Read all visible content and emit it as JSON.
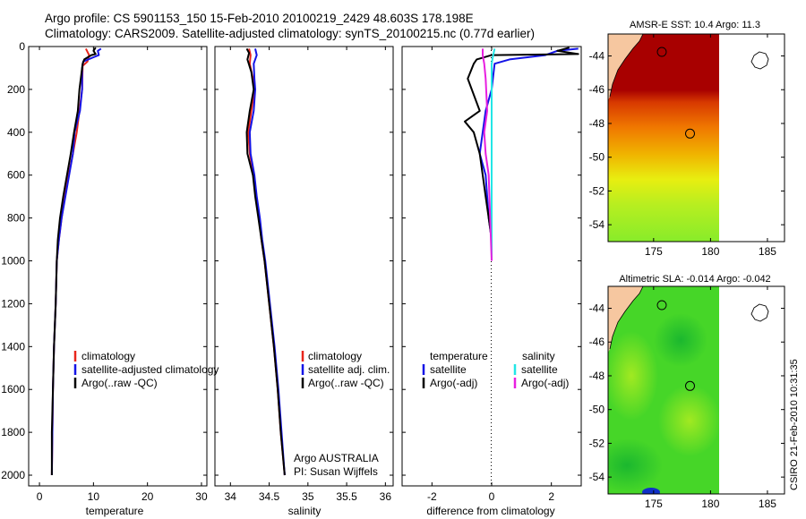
{
  "title": {
    "line1": "Argo profile: CS 5901153_150 15-Feb-2010 20100219_2429 48.603S 178.198E",
    "line2": "Climatology: CARS2009. Satellite-adjusted climatology: synTS_20100215.nc (0.77d earlier)"
  },
  "colors": {
    "climatology": "#e8251b",
    "satellite": "#1414e6",
    "argo": "#000000",
    "satellite_salinity": "#22e6e6",
    "argo_salinity": "#e81fe0",
    "land": "#f6c7a0"
  },
  "chart_data": [
    {
      "id": "temperature",
      "type": "line",
      "xlabel": "temperature",
      "ylabel": "",
      "xlim": [
        -2,
        31
      ],
      "ylim": [
        2050,
        0
      ],
      "xticks": [
        "0",
        "10",
        "20",
        "30"
      ],
      "xtick_values": [
        0,
        10,
        20,
        30
      ],
      "yticks": [
        "0",
        "200",
        "400",
        "600",
        "800",
        "1000",
        "1200",
        "1400",
        "1600",
        "1800",
        "2000"
      ],
      "ytick_values": [
        0,
        200,
        400,
        600,
        800,
        1000,
        1200,
        1400,
        1600,
        1800,
        2000
      ],
      "legend": [
        "climatology",
        "satellite-adjusted climatology",
        "Argo(..raw -QC)"
      ],
      "series": [
        {
          "name": "climatology",
          "color": "#e8251b",
          "points": [
            [
              8.6,
              10
            ],
            [
              9.2,
              40
            ],
            [
              8.9,
              70
            ],
            [
              8.0,
              90
            ],
            [
              7.9,
              200
            ],
            [
              7.4,
              300
            ],
            [
              6.9,
              400
            ],
            [
              6.2,
              500
            ],
            [
              5.4,
              600
            ],
            [
              4.7,
              700
            ],
            [
              4.1,
              800
            ],
            [
              3.6,
              900
            ],
            [
              3.2,
              1000
            ],
            [
              3.0,
              1200
            ],
            [
              2.7,
              1400
            ],
            [
              2.5,
              1600
            ],
            [
              2.4,
              1800
            ],
            [
              2.3,
              2000
            ]
          ]
        },
        {
          "name": "satellite-adjusted climatology",
          "color": "#1414e6",
          "points": [
            [
              11.4,
              10
            ],
            [
              10.8,
              20
            ],
            [
              11.0,
              40
            ],
            [
              10.0,
              50
            ],
            [
              8.1,
              70
            ],
            [
              7.9,
              100
            ],
            [
              7.9,
              200
            ],
            [
              7.5,
              300
            ],
            [
              7.0,
              350
            ],
            [
              6.5,
              400
            ],
            [
              6.2,
              500
            ],
            [
              5.5,
              600
            ],
            [
              4.8,
              700
            ],
            [
              4.1,
              800
            ],
            [
              3.6,
              900
            ],
            [
              3.2,
              1000
            ],
            [
              3.0,
              1200
            ],
            [
              2.7,
              1400
            ],
            [
              2.5,
              1600
            ],
            [
              2.4,
              1800
            ],
            [
              2.3,
              2000
            ]
          ]
        },
        {
          "name": "Argo(..raw -QC)",
          "color": "#000000",
          "points": [
            [
              10.4,
              5
            ],
            [
              10.0,
              20
            ],
            [
              10.4,
              35
            ],
            [
              9.6,
              40
            ],
            [
              8.3,
              60
            ],
            [
              8.0,
              80
            ],
            [
              7.8,
              120
            ],
            [
              7.4,
              200
            ],
            [
              7.1,
              300
            ],
            [
              6.4,
              400
            ],
            [
              5.8,
              500
            ],
            [
              5.1,
              600
            ],
            [
              4.4,
              700
            ],
            [
              3.8,
              800
            ],
            [
              3.4,
              900
            ],
            [
              3.2,
              1000
            ],
            [
              3.0,
              1200
            ],
            [
              2.7,
              1400
            ],
            [
              2.5,
              1600
            ],
            [
              2.3,
              1800
            ],
            [
              2.3,
              2000
            ]
          ]
        }
      ]
    },
    {
      "id": "salinity",
      "type": "line",
      "xlabel": "salinity",
      "ylabel": "",
      "xlim": [
        33.8,
        36.1
      ],
      "ylim": [
        2050,
        0
      ],
      "xticks": [
        "34",
        "34.5",
        "35",
        "35.5",
        "36"
      ],
      "xtick_values": [
        34,
        34.5,
        35,
        35.5,
        36
      ],
      "legend": [
        "climatology",
        "satellite adj. clim.",
        "Argo(..raw -QC)"
      ],
      "annotation": {
        "line1": "Argo AUSTRALIA",
        "line2": "PI: Susan Wijffels"
      },
      "series": [
        {
          "name": "climatology",
          "color": "#e8251b",
          "points": [
            [
              34.24,
              10
            ],
            [
              34.26,
              40
            ],
            [
              34.25,
              80
            ],
            [
              34.29,
              150
            ],
            [
              34.31,
              200
            ],
            [
              34.27,
              300
            ],
            [
              34.23,
              400
            ],
            [
              34.25,
              500
            ],
            [
              34.3,
              600
            ],
            [
              34.33,
              700
            ],
            [
              34.37,
              800
            ],
            [
              34.4,
              900
            ],
            [
              34.44,
              1000
            ],
            [
              34.5,
              1200
            ],
            [
              34.56,
              1400
            ],
            [
              34.61,
              1600
            ],
            [
              34.65,
              1800
            ],
            [
              34.7,
              2000
            ]
          ]
        },
        {
          "name": "satellite adj. clim.",
          "color": "#1414e6",
          "points": [
            [
              34.32,
              10
            ],
            [
              34.34,
              40
            ],
            [
              34.3,
              80
            ],
            [
              34.31,
              150
            ],
            [
              34.32,
              200
            ],
            [
              34.3,
              300
            ],
            [
              34.25,
              400
            ],
            [
              34.26,
              500
            ],
            [
              34.31,
              600
            ],
            [
              34.34,
              700
            ],
            [
              34.38,
              800
            ],
            [
              34.41,
              900
            ],
            [
              34.45,
              1000
            ],
            [
              34.51,
              1200
            ],
            [
              34.57,
              1400
            ],
            [
              34.62,
              1600
            ],
            [
              34.66,
              1800
            ],
            [
              34.7,
              2000
            ]
          ]
        },
        {
          "name": "Argo(..raw -QC)",
          "color": "#000000",
          "points": [
            [
              34.21,
              10
            ],
            [
              34.24,
              30
            ],
            [
              34.22,
              60
            ],
            [
              34.27,
              120
            ],
            [
              34.3,
              200
            ],
            [
              34.25,
              300
            ],
            [
              34.21,
              400
            ],
            [
              34.22,
              500
            ],
            [
              34.29,
              600
            ],
            [
              34.32,
              700
            ],
            [
              34.36,
              800
            ],
            [
              34.4,
              900
            ],
            [
              34.44,
              1000
            ],
            [
              34.5,
              1200
            ],
            [
              34.56,
              1400
            ],
            [
              34.61,
              1600
            ],
            [
              34.65,
              1800
            ],
            [
              34.7,
              2000
            ]
          ]
        }
      ]
    },
    {
      "id": "difference",
      "type": "line",
      "xlabel": "difference from climatology",
      "ylabel": "",
      "xlim": [
        -3,
        3
      ],
      "ylim": [
        2050,
        0
      ],
      "xticks": [
        "-2",
        "0",
        "2"
      ],
      "xtick_values": [
        -2,
        0,
        2
      ],
      "legend_headers": [
        "temperature",
        "salinity"
      ],
      "legend": [
        "satellite",
        "Argo(-adj)",
        "satellite",
        "Argo(-adj)"
      ],
      "series": [
        {
          "name": "satellite",
          "group": "temperature",
          "color": "#1414e6",
          "points": [
            [
              2.9,
              10
            ],
            [
              2.2,
              20
            ],
            [
              1.8,
              40
            ],
            [
              0.6,
              60
            ],
            [
              0.1,
              80
            ],
            [
              0.0,
              200
            ],
            [
              -0.2,
              300
            ],
            [
              -0.3,
              400
            ],
            [
              -0.4,
              500
            ],
            [
              -0.2,
              600
            ],
            [
              -0.15,
              700
            ],
            [
              -0.1,
              800
            ],
            [
              0.0,
              900
            ],
            [
              0.0,
              1000
            ]
          ]
        },
        {
          "name": "Argo(-adj)",
          "group": "temperature",
          "color": "#000000",
          "points": [
            [
              2.6,
              5
            ],
            [
              2.2,
              20
            ],
            [
              2.9,
              35
            ],
            [
              0.0,
              40
            ],
            [
              -0.5,
              60
            ],
            [
              -0.6,
              80
            ],
            [
              -0.8,
              150
            ],
            [
              -0.4,
              300
            ],
            [
              -0.9,
              350
            ],
            [
              -0.6,
              400
            ],
            [
              -0.4,
              500
            ],
            [
              -0.3,
              600
            ],
            [
              -0.2,
              700
            ],
            [
              -0.1,
              800
            ],
            [
              0.0,
              900
            ],
            [
              0.0,
              1000
            ]
          ]
        },
        {
          "name": "satellite",
          "group": "salinity",
          "color": "#22e6e6",
          "points": [
            [
              0.1,
              10
            ],
            [
              0.05,
              40
            ],
            [
              0.0,
              80
            ],
            [
              0.0,
              200
            ],
            [
              0.0,
              400
            ],
            [
              0.0,
              600
            ],
            [
              0.0,
              800
            ],
            [
              0.0,
              1000
            ]
          ]
        },
        {
          "name": "Argo(-adj)",
          "group": "salinity",
          "color": "#e81fe0",
          "points": [
            [
              -0.3,
              10
            ],
            [
              -0.3,
              40
            ],
            [
              -0.25,
              80
            ],
            [
              -0.2,
              150
            ],
            [
              -0.15,
              300
            ],
            [
              -0.25,
              400
            ],
            [
              -0.2,
              500
            ],
            [
              -0.1,
              600
            ],
            [
              -0.05,
              800
            ],
            [
              0.0,
              1000
            ]
          ]
        }
      ]
    },
    {
      "id": "sst-map",
      "type": "heatmap",
      "title": "AMSR-E SST: 10.4  Argo: 11.3",
      "xlim": [
        171,
        186.5
      ],
      "ylim": [
        -55,
        -42.7
      ],
      "xticks": [
        "175",
        "180",
        "185"
      ],
      "xtick_values": [
        175,
        180,
        185
      ],
      "yticks": [
        "-44",
        "-46",
        "-48",
        "-50",
        "-52",
        "-54"
      ],
      "ytick_values": [
        -44,
        -46,
        -48,
        -50,
        -52,
        -54
      ],
      "argo_position": [
        178.2,
        -48.6
      ]
    },
    {
      "id": "sla-map",
      "type": "heatmap",
      "title": "Altimetric SLA: -0.014  Argo: -0.042",
      "xlim": [
        171,
        186.5
      ],
      "ylim": [
        -55,
        -42.7
      ],
      "xticks": [
        "175",
        "180",
        "185"
      ],
      "xtick_values": [
        175,
        180,
        185
      ],
      "yticks": [
        "-44",
        "-46",
        "-48",
        "-50",
        "-52",
        "-54"
      ],
      "ytick_values": [
        -44,
        -46,
        -48,
        -50,
        -52,
        -54
      ],
      "argo_position": [
        178.2,
        -48.6
      ]
    }
  ],
  "stamp": "CSIRO 21-Feb-2010 10:31:35"
}
